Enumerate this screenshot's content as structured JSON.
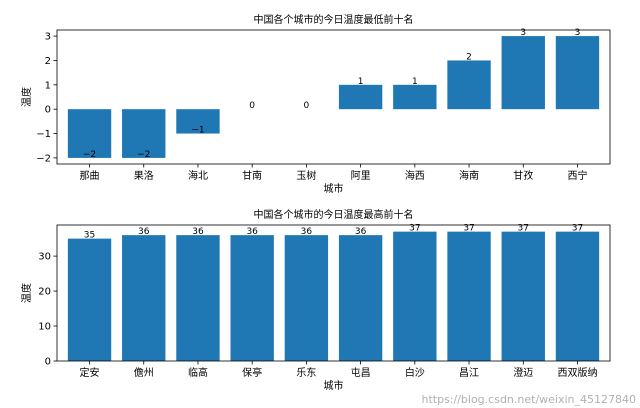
{
  "chart_data": [
    {
      "type": "bar",
      "title": "中国各个城市的今日温度最低前十名",
      "xlabel": "城市",
      "ylabel": "温度",
      "categories": [
        "那曲",
        "果洛",
        "海北",
        "甘南",
        "玉树",
        "阿里",
        "海西",
        "海南",
        "甘孜",
        "西宁"
      ],
      "values": [
        -2,
        -2,
        -1,
        0,
        0,
        1,
        1,
        2,
        3,
        3
      ],
      "data_labels": [
        "−2",
        "−2",
        "−1",
        "0",
        "0",
        "1",
        "1",
        "2",
        "3",
        "3"
      ],
      "ylim": [
        -2.25,
        3.25
      ],
      "yticks": [
        -2,
        -1,
        0,
        1,
        2,
        3
      ],
      "ytick_labels": [
        "−2",
        "−1",
        "0",
        "1",
        "2",
        "3"
      ],
      "color": "#1f77b4",
      "grid": false
    },
    {
      "type": "bar",
      "title": "中国各个城市的今日温度最高前十名",
      "xlabel": "城市",
      "ylabel": "温度",
      "categories": [
        "定安",
        "儋州",
        "临高",
        "保亭",
        "乐东",
        "屯昌",
        "白沙",
        "昌江",
        "澄迈",
        "西双版纳"
      ],
      "values": [
        35,
        36,
        36,
        36,
        36,
        36,
        37,
        37,
        37,
        37
      ],
      "data_labels": [
        "35",
        "36",
        "36",
        "36",
        "36",
        "36",
        "37",
        "37",
        "37",
        "37"
      ],
      "ylim": [
        0,
        38.9
      ],
      "yticks": [
        0,
        10,
        20,
        30
      ],
      "ytick_labels": [
        "0",
        "10",
        "20",
        "30"
      ],
      "color": "#1f77b4",
      "grid": false
    }
  ],
  "watermark": "https://blog.csdn.net/weixin_45127840"
}
